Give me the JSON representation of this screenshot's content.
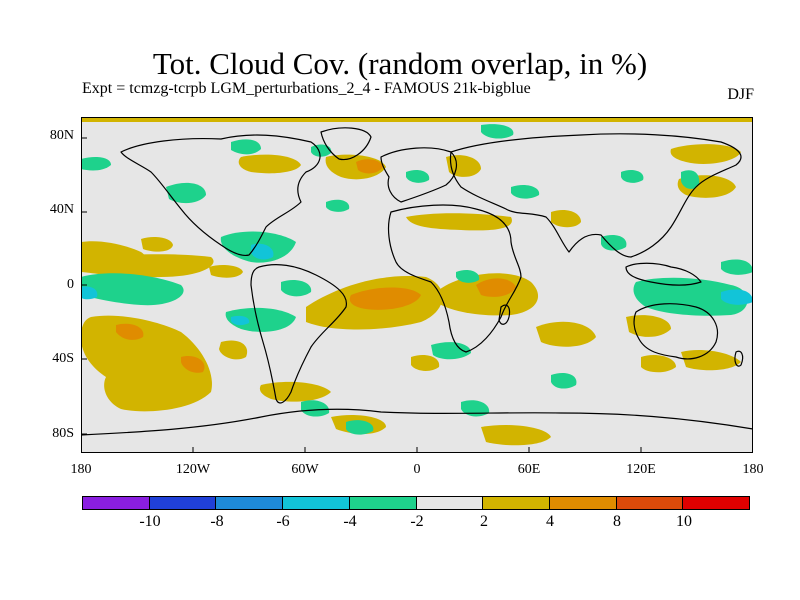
{
  "title": "Tot. Cloud Cov. (random overlap, in %)",
  "subtitle": "Expt = tcmzg-tcrpb    LGM_perturbations_2_4 - FAMOUS 21k-bigblue",
  "season": "DJF",
  "lat_labels": [
    "80N",
    "40N",
    "0",
    "40S",
    "80S"
  ],
  "lon_labels": [
    "180",
    "120W",
    "60W",
    "0",
    "60E",
    "120E",
    "180"
  ],
  "colorbar": {
    "colors": [
      "#8a1ee0",
      "#2040d8",
      "#1e8ad8",
      "#12c4d8",
      "#1ed28c",
      "#e6e6e6",
      "#d2b400",
      "#e08c00",
      "#dc4a0a",
      "#e00000"
    ],
    "labels": [
      "-10",
      "-8",
      "-6",
      "-4",
      "-2",
      "2",
      "4",
      "8",
      "10"
    ]
  },
  "colors": {
    "neutral": "#e6e6e6",
    "pos1": "#d2b400",
    "pos2": "#e08c00",
    "pos3": "#dc4a0a",
    "neg1": "#1ed28c",
    "neg2": "#12c4d8",
    "neg3": "#1e8ad8"
  }
}
